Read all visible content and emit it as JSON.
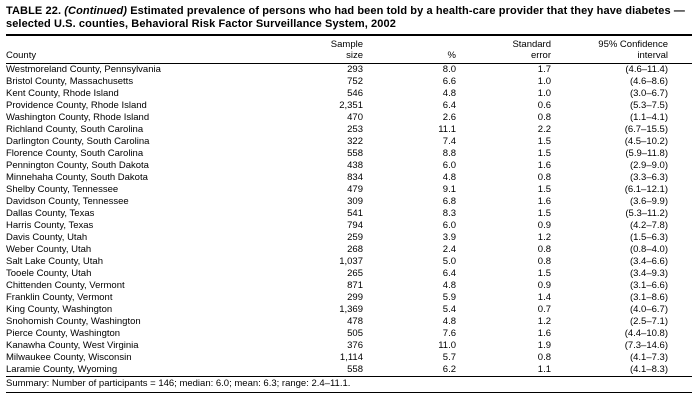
{
  "title": {
    "label": "TABLE 22.",
    "continued": "(Continued)",
    "text": "Estimated prevalence of persons who had been told by a health-care provider that they have diabetes — selected U.S. counties, Behavioral Risk Factor Surveillance System, 2002"
  },
  "columns": {
    "county": "County",
    "sample_size_line1": "Sample",
    "sample_size_line2": "size",
    "percent": "%",
    "standard_error_line1": "Standard",
    "standard_error_line2": "error",
    "confidence_line1": "95% Confidence",
    "confidence_line2": "interval"
  },
  "rows": [
    {
      "county": "Westmoreland County, Pennsylvania",
      "sample": "293",
      "pct": "8.0",
      "se": "1.7",
      "ci": "(4.6–11.4)"
    },
    {
      "county": "Bristol County, Massachusetts",
      "sample": "752",
      "pct": "6.6",
      "se": "1.0",
      "ci": "(4.6–8.6)"
    },
    {
      "county": "Kent County, Rhode Island",
      "sample": "546",
      "pct": "4.8",
      "se": "1.0",
      "ci": "(3.0–6.7)"
    },
    {
      "county": "Providence County, Rhode Island",
      "sample": "2,351",
      "pct": "6.4",
      "se": "0.6",
      "ci": "(5.3–7.5)"
    },
    {
      "county": "Washington County, Rhode Island",
      "sample": "470",
      "pct": "2.6",
      "se": "0.8",
      "ci": "(1.1–4.1)"
    },
    {
      "county": "Richland County, South Carolina",
      "sample": "253",
      "pct": "11.1",
      "se": "2.2",
      "ci": "(6.7–15.5)"
    },
    {
      "county": "Darlington County, South Carolina",
      "sample": "322",
      "pct": "7.4",
      "se": "1.5",
      "ci": "(4.5–10.2)"
    },
    {
      "county": "Florence County, South Carolina",
      "sample": "558",
      "pct": "8.8",
      "se": "1.5",
      "ci": "(5.9–11.8)"
    },
    {
      "county": "Pennington County, South Dakota",
      "sample": "438",
      "pct": "6.0",
      "se": "1.6",
      "ci": "(2.9–9.0)"
    },
    {
      "county": "Minnehaha County, South Dakota",
      "sample": "834",
      "pct": "4.8",
      "se": "0.8",
      "ci": "(3.3–6.3)"
    },
    {
      "county": "Shelby County, Tennessee",
      "sample": "479",
      "pct": "9.1",
      "se": "1.5",
      "ci": "(6.1–12.1)"
    },
    {
      "county": "Davidson County, Tennessee",
      "sample": "309",
      "pct": "6.8",
      "se": "1.6",
      "ci": "(3.6–9.9)"
    },
    {
      "county": "Dallas County, Texas",
      "sample": "541",
      "pct": "8.3",
      "se": "1.5",
      "ci": "(5.3–11.2)"
    },
    {
      "county": "Harris County, Texas",
      "sample": "794",
      "pct": "6.0",
      "se": "0.9",
      "ci": "(4.2–7.8)"
    },
    {
      "county": "Davis County, Utah",
      "sample": "259",
      "pct": "3.9",
      "se": "1.2",
      "ci": "(1.5–6.3)"
    },
    {
      "county": "Weber County, Utah",
      "sample": "268",
      "pct": "2.4",
      "se": "0.8",
      "ci": "(0.8–4.0)"
    },
    {
      "county": "Salt Lake County, Utah",
      "sample": "1,037",
      "pct": "5.0",
      "se": "0.8",
      "ci": "(3.4–6.6)"
    },
    {
      "county": "Tooele County, Utah",
      "sample": "265",
      "pct": "6.4",
      "se": "1.5",
      "ci": "(3.4–9.3)"
    },
    {
      "county": "Chittenden County, Vermont",
      "sample": "871",
      "pct": "4.8",
      "se": "0.9",
      "ci": "(3.1–6.6)"
    },
    {
      "county": "Franklin County, Vermont",
      "sample": "299",
      "pct": "5.9",
      "se": "1.4",
      "ci": "(3.1–8.6)"
    },
    {
      "county": "King County, Washington",
      "sample": "1,369",
      "pct": "5.4",
      "se": "0.7",
      "ci": "(4.0–6.7)"
    },
    {
      "county": "Snohomish County, Washington",
      "sample": "478",
      "pct": "4.8",
      "se": "1.2",
      "ci": "(2.5–7.1)"
    },
    {
      "county": "Pierce County, Washington",
      "sample": "505",
      "pct": "7.6",
      "se": "1.6",
      "ci": "(4.4–10.8)"
    },
    {
      "county": "Kanawha County, West Virginia",
      "sample": "376",
      "pct": "11.0",
      "se": "1.9",
      "ci": "(7.3–14.6)"
    },
    {
      "county": "Milwaukee County, Wisconsin",
      "sample": "1,114",
      "pct": "5.7",
      "se": "0.8",
      "ci": "(4.1–7.3)"
    },
    {
      "county": "Laramie County, Wyoming",
      "sample": "558",
      "pct": "6.2",
      "se": "1.1",
      "ci": "(4.1–8.3)"
    }
  ],
  "summary": "Summary: Number of participants = 146; median: 6.0; mean: 6.3; range: 2.4–11.1."
}
